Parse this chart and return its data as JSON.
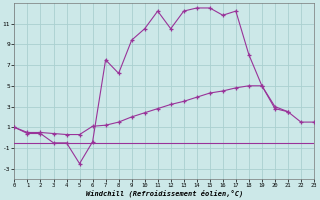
{
  "curve_top_x": [
    0,
    1,
    2,
    3,
    4,
    5,
    6,
    7,
    8,
    9,
    10,
    11,
    12,
    13,
    14,
    15,
    16,
    17,
    18,
    19,
    20,
    21
  ],
  "curve_top_y": [
    1.0,
    0.4,
    0.4,
    -0.5,
    -0.5,
    -2.5,
    -0.4,
    7.5,
    6.2,
    9.4,
    10.5,
    12.2,
    10.5,
    12.2,
    12.5,
    12.5,
    11.8,
    12.2,
    8.0,
    5.0,
    2.8,
    2.5
  ],
  "curve_mid_x": [
    0,
    1,
    2,
    3,
    4,
    5,
    6,
    7,
    8,
    9,
    10,
    11,
    12,
    13,
    14,
    15,
    16,
    17,
    18,
    19,
    20,
    21,
    22,
    23
  ],
  "curve_mid_y": [
    1.0,
    0.5,
    0.5,
    0.4,
    0.3,
    0.3,
    1.1,
    1.2,
    1.5,
    2.0,
    2.4,
    2.8,
    3.2,
    3.5,
    3.9,
    4.3,
    4.5,
    4.8,
    5.0,
    5.0,
    3.0,
    2.5,
    1.5,
    1.5
  ],
  "curve_flat_x": [
    0,
    1,
    2,
    3,
    4,
    5,
    6,
    7,
    8,
    9,
    10,
    11,
    12,
    13,
    14,
    15,
    16,
    17,
    18,
    19,
    20,
    21,
    22,
    23
  ],
  "curve_flat_y": [
    -0.5,
    -0.5,
    -0.5,
    -0.5,
    -0.5,
    -0.5,
    -0.5,
    -0.5,
    -0.5,
    -0.5,
    -0.5,
    -0.5,
    -0.5,
    -0.5,
    -0.5,
    -0.5,
    -0.5,
    -0.5,
    -0.5,
    -0.5,
    -0.5,
    -0.5,
    -0.5,
    -0.5
  ],
  "line_color": "#993399",
  "bg_color": "#cce8e8",
  "grid_color": "#aad0d0",
  "xlabel": "Windchill (Refroidissement éolien,°C)",
  "xlim": [
    0,
    23
  ],
  "ylim": [
    -4,
    13
  ],
  "yticks": [
    -3,
    -1,
    1,
    3,
    5,
    7,
    9,
    11
  ],
  "xticks": [
    0,
    1,
    2,
    3,
    4,
    5,
    6,
    7,
    8,
    9,
    10,
    11,
    12,
    13,
    14,
    15,
    16,
    17,
    18,
    19,
    20,
    21,
    22,
    23
  ]
}
